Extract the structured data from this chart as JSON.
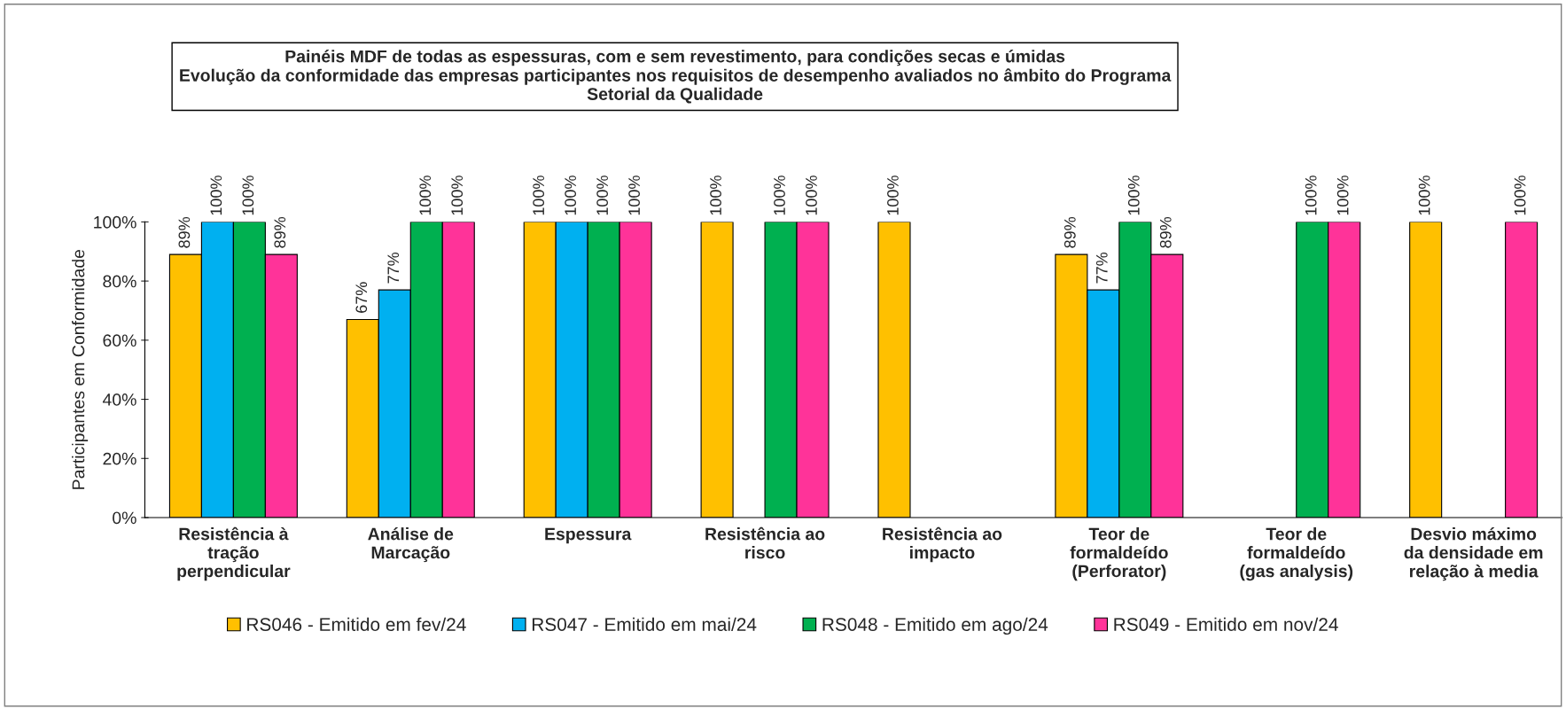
{
  "chart_data": {
    "type": "bar",
    "title": "Painéis MDF de todas as espessuras, com e sem revestimento, para condições secas e úmidas\nEvolução da conformidade das empresas participantes nos requisitos de desempenho avaliados no âmbito do Programa\nSetorial da Qualidade",
    "ylabel": "Participantes em Conformidade",
    "categories": [
      "Resistência à\ntração\nperpendicular",
      "Análise de\nMarcação",
      "Espessura",
      "Resistência ao\nrisco",
      "Resistência ao\nimpacto",
      "Teor de\nformaldeído\n(Perforator)",
      "Teor de\nformaldeído\n(gas analysis)",
      "Desvio máximo\nda densidade em\nrelação à media"
    ],
    "series": [
      {
        "name": "RS046 - Emitido em fev/24",
        "color": "#ffc000",
        "values": [
          89,
          67,
          100,
          100,
          100,
          89,
          null,
          100
        ],
        "value_labels": [
          "89%",
          "67%",
          "100%",
          "100%",
          "100%",
          "89%",
          null,
          "100%"
        ]
      },
      {
        "name": "RS047 - Emitido em mai/24",
        "color": "#00b0f0",
        "values": [
          100,
          77,
          100,
          null,
          null,
          77,
          null,
          null
        ],
        "value_labels": [
          "100%",
          "77%",
          "100%",
          null,
          null,
          "77%",
          null,
          null
        ]
      },
      {
        "name": "RS048 - Emitido em ago/24",
        "color": "#00b050",
        "values": [
          100,
          100,
          100,
          100,
          null,
          100,
          100,
          null
        ],
        "value_labels": [
          "100%",
          "100%",
          "100%",
          "100%",
          null,
          "100%",
          "100%",
          null
        ]
      },
      {
        "name": "RS049 - Emitido em nov/24",
        "color": "#ff3399",
        "values": [
          89,
          100,
          100,
          100,
          null,
          89,
          100,
          100
        ],
        "value_labels": [
          "89%",
          "100%",
          "100%",
          "100%",
          null,
          "89%",
          "100%",
          "100%"
        ]
      }
    ],
    "ylim": [
      0,
      100
    ],
    "yticks": [
      {
        "value": 0,
        "label": "0%"
      },
      {
        "value": 20,
        "label": "20%"
      },
      {
        "value": 40,
        "label": "40%"
      },
      {
        "value": 60,
        "label": "60%"
      },
      {
        "value": 80,
        "label": "80%"
      },
      {
        "value": 100,
        "label": "100%"
      }
    ],
    "grid": false,
    "legend": "bottom"
  }
}
